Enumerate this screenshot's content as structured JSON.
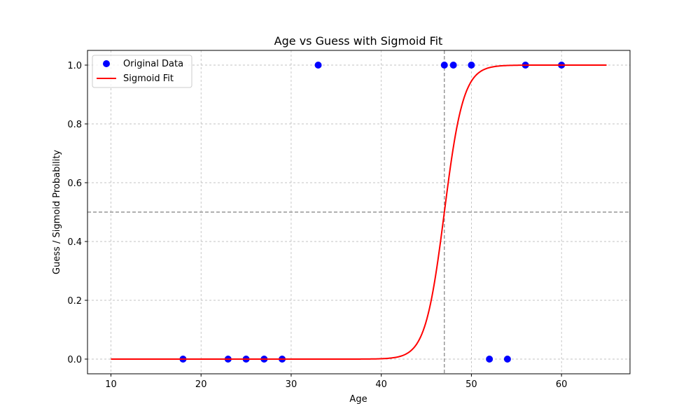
{
  "chart_data": {
    "type": "scatter",
    "title": "Age vs Guess with Sigmoid Fit",
    "xlabel": "Age",
    "ylabel": "Guess / Sigmoid Probability",
    "xlim": [
      7.4,
      67.6
    ],
    "ylim": [
      -0.05,
      1.05
    ],
    "xticks": [
      10,
      20,
      30,
      40,
      50,
      60
    ],
    "yticks": [
      0.0,
      0.2,
      0.4,
      0.6,
      0.8,
      1.0
    ],
    "xtick_labels": [
      "10",
      "20",
      "30",
      "40",
      "50",
      "60"
    ],
    "ytick_labels": [
      "0.0",
      "0.2",
      "0.4",
      "0.6",
      "0.8",
      "1.0"
    ],
    "grid": true,
    "legend_position": "top-left",
    "series": [
      {
        "name": "Original Data",
        "kind": "scatter",
        "color": "#0000ff",
        "x": [
          18,
          23,
          25,
          27,
          29,
          33,
          47,
          48,
          50,
          52,
          54,
          56,
          60
        ],
        "y": [
          0,
          0,
          0,
          0,
          0,
          1,
          1,
          1,
          1,
          0,
          0,
          1,
          1
        ]
      },
      {
        "name": "Sigmoid Fit",
        "kind": "line",
        "color": "#ff0000",
        "function": "sigmoid",
        "x0": 47.0,
        "k": 0.95,
        "x_range": [
          10,
          65
        ]
      }
    ],
    "reference_lines": [
      {
        "orientation": "horizontal",
        "value": 0.5,
        "color": "#808080",
        "style": "dashed"
      },
      {
        "orientation": "vertical",
        "value": 47.0,
        "color": "#808080",
        "style": "dashed"
      }
    ]
  }
}
